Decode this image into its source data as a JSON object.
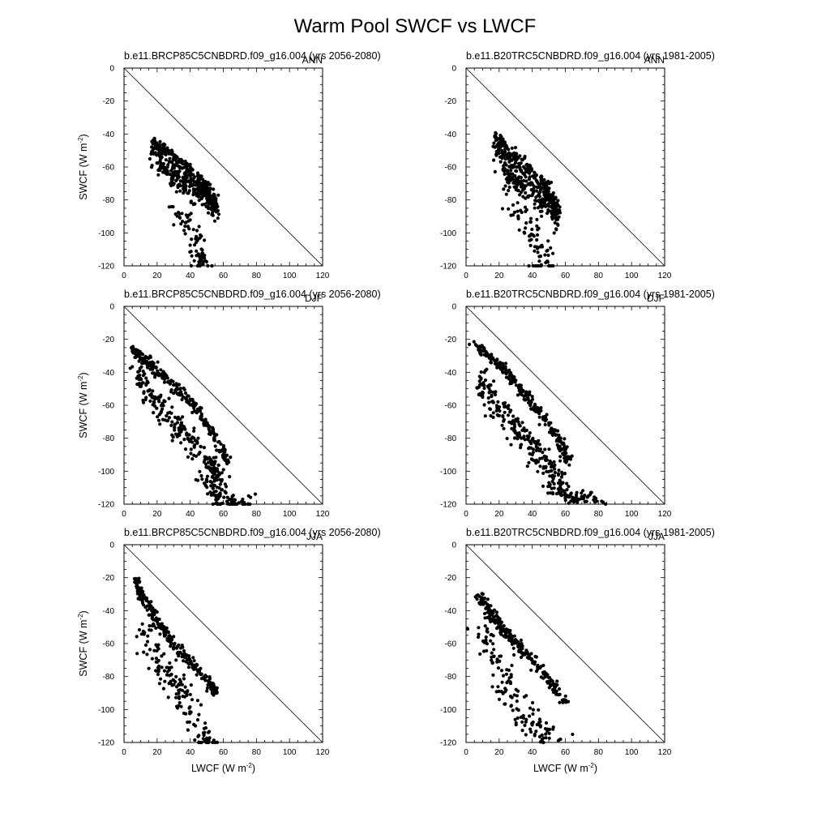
{
  "figure": {
    "title": "Warm Pool SWCF vs LWCF"
  },
  "chart_data": [
    {
      "type": "scatter",
      "title": "b.e11.BRCP85C5CNBDRD.f09_g16.004 (yrs 2056-2080)",
      "season": "ANN",
      "xlabel": "",
      "ylabel": "SWCF (W m-2)",
      "ylabel_main": "SWCF (W m",
      "ylabel_sup": "-2",
      "ylabel_end": ")",
      "xlim": [
        0,
        120
      ],
      "ylim": [
        -120,
        0
      ],
      "xticks": [
        "0",
        "20",
        "40",
        "60",
        "80",
        "100",
        "120"
      ],
      "yticks": [
        "0",
        "-20",
        "-40",
        "-60",
        "-80",
        "-100",
        "-120"
      ],
      "reference_line": "y = -x",
      "clusters": [
        {
          "curve": [
            [
              17,
              -42
            ],
            [
              25,
              -48
            ],
            [
              35,
              -56
            ],
            [
              45,
              -64
            ],
            [
              52,
              -73
            ],
            [
              56,
              -80
            ]
          ],
          "spread": [
            2,
            12
          ],
          "count": 340
        },
        {
          "curve": [
            [
              20,
              -56
            ],
            [
              30,
              -62
            ],
            [
              40,
              -68
            ],
            [
              50,
              -76
            ]
          ],
          "spread": [
            4,
            10
          ],
          "count": 120
        },
        {
          "curve": [
            [
              30,
              -80
            ],
            [
              38,
              -90
            ],
            [
              42,
              -100
            ],
            [
              45,
              -112
            ],
            [
              48,
              -118
            ]
          ],
          "spread": [
            5,
            8
          ],
          "count": 75
        }
      ]
    },
    {
      "type": "scatter",
      "title": "b.e11.B20TRC5CNBDRD.f09_g16.004 (yrs 1981-2005)",
      "season": "ANN",
      "xlabel": "",
      "ylabel": "",
      "xlim": [
        0,
        120
      ],
      "ylim": [
        -120,
        0
      ],
      "xticks": [
        "0",
        "20",
        "40",
        "60",
        "80",
        "100",
        "120"
      ],
      "yticks": [
        "0",
        "-20",
        "-40",
        "-60",
        "-80",
        "-100",
        "-120"
      ],
      "reference_line": "y = -x",
      "clusters": [
        {
          "curve": [
            [
              18,
              -40
            ],
            [
              25,
              -47
            ],
            [
              35,
              -56
            ],
            [
              45,
              -66
            ],
            [
              52,
              -76
            ],
            [
              55,
              -86
            ]
          ],
          "spread": [
            2,
            12
          ],
          "count": 340
        },
        {
          "curve": [
            [
              22,
              -58
            ],
            [
              30,
              -66
            ],
            [
              40,
              -72
            ],
            [
              50,
              -82
            ]
          ],
          "spread": [
            4,
            10
          ],
          "count": 110
        },
        {
          "curve": [
            [
              25,
              -80
            ],
            [
              35,
              -88
            ],
            [
              42,
              -100
            ],
            [
              46,
              -112
            ],
            [
              48,
              -118
            ]
          ],
          "spread": [
            6,
            8
          ],
          "count": 70
        }
      ]
    },
    {
      "type": "scatter",
      "title": "b.e11.BRCP85C5CNBDRD.f09_g16.004 (yrs 2056-2080)",
      "season": "DJF",
      "xlabel": "",
      "ylabel": "SWCF (W m-2)",
      "ylabel_main": "SWCF (W m",
      "ylabel_sup": "-2",
      "ylabel_end": ")",
      "xlim": [
        0,
        120
      ],
      "ylim": [
        -120,
        0
      ],
      "xticks": [
        "0",
        "20",
        "40",
        "60",
        "80",
        "100",
        "120"
      ],
      "yticks": [
        "0",
        "-20",
        "-40",
        "-60",
        "-80",
        "-100",
        "-120"
      ],
      "reference_line": "y = -x",
      "clusters": [
        {
          "curve": [
            [
              5,
              -25
            ],
            [
              15,
              -33
            ],
            [
              25,
              -42
            ],
            [
              35,
              -52
            ],
            [
              45,
              -63
            ],
            [
              55,
              -78
            ],
            [
              62,
              -92
            ]
          ],
          "spread": [
            2,
            3
          ],
          "count": 260
        },
        {
          "curve": [
            [
              8,
              -35
            ],
            [
              15,
              -48
            ],
            [
              25,
              -60
            ],
            [
              35,
              -72
            ],
            [
              45,
              -82
            ],
            [
              55,
              -95
            ],
            [
              60,
              -105
            ]
          ],
          "spread": [
            4,
            12
          ],
          "count": 230
        },
        {
          "curve": [
            [
              48,
              -100
            ],
            [
              55,
              -110
            ],
            [
              60,
              -115
            ],
            [
              65,
              -118
            ],
            [
              76,
              -114
            ]
          ],
          "spread": [
            6,
            8
          ],
          "count": 80
        }
      ]
    },
    {
      "type": "scatter",
      "title": "b.e11.B20TRC5CNBDRD.f09_g16.004 (yrs 1981-2005)",
      "season": "DJF",
      "xlabel": "",
      "ylabel": "",
      "xlim": [
        0,
        120
      ],
      "ylim": [
        -120,
        0
      ],
      "xticks": [
        "0",
        "20",
        "40",
        "60",
        "80",
        "100",
        "120"
      ],
      "yticks": [
        "0",
        "-20",
        "-40",
        "-60",
        "-80",
        "-100",
        "-120"
      ],
      "reference_line": "y = -x",
      "clusters": [
        {
          "curve": [
            [
              5,
              -22
            ],
            [
              15,
              -30
            ],
            [
              25,
              -40
            ],
            [
              35,
              -52
            ],
            [
              45,
              -64
            ],
            [
              55,
              -78
            ],
            [
              62,
              -92
            ]
          ],
          "spread": [
            2,
            3
          ],
          "count": 260
        },
        {
          "curve": [
            [
              8,
              -35
            ],
            [
              15,
              -50
            ],
            [
              25,
              -62
            ],
            [
              35,
              -75
            ],
            [
              45,
              -85
            ],
            [
              55,
              -98
            ],
            [
              60,
              -108
            ]
          ],
          "spread": [
            4,
            14
          ],
          "count": 230
        },
        {
          "curve": [
            [
              50,
              -105
            ],
            [
              58,
              -112
            ],
            [
              65,
              -115
            ],
            [
              72,
              -112
            ],
            [
              80,
              -118
            ]
          ],
          "spread": [
            6,
            6
          ],
          "count": 70
        }
      ]
    },
    {
      "type": "scatter",
      "title": "b.e11.BRCP85C5CNBDRD.f09_g16.004 (yrs 2056-2080)",
      "season": "JJA",
      "xlabel": "LWCF (W m-2)",
      "xlabel_main": "LWCF (W m",
      "xlabel_sup": "-2",
      "xlabel_end": ")",
      "ylabel": "SWCF (W m-2)",
      "ylabel_main": "SWCF (W m",
      "ylabel_sup": "-2",
      "ylabel_end": ")",
      "xlim": [
        0,
        120
      ],
      "ylim": [
        -120,
        0
      ],
      "xticks": [
        "0",
        "20",
        "40",
        "60",
        "80",
        "100",
        "120"
      ],
      "yticks": [
        "0",
        "-20",
        "-40",
        "-60",
        "-80",
        "-100",
        "-120"
      ],
      "reference_line": "y = -x",
      "clusters": [
        {
          "curve": [
            [
              7,
              -20
            ],
            [
              12,
              -32
            ],
            [
              20,
              -45
            ],
            [
              30,
              -58
            ],
            [
              40,
              -70
            ],
            [
              50,
              -80
            ],
            [
              55,
              -88
            ]
          ],
          "spread": [
            2,
            4
          ],
          "count": 260
        },
        {
          "curve": [
            [
              12,
              -45
            ],
            [
              20,
              -65
            ],
            [
              30,
              -80
            ],
            [
              40,
              -95
            ],
            [
              48,
              -110
            ],
            [
              52,
              -118
            ]
          ],
          "spread": [
            7,
            12
          ],
          "count": 150
        }
      ]
    },
    {
      "type": "scatter",
      "title": "b.e11.B20TRC5CNBDRD.f09_g16.004 (yrs 1981-2005)",
      "season": "JJA",
      "xlabel": "LWCF (W m-2)",
      "xlabel_main": "LWCF (W m",
      "xlabel_sup": "-2",
      "xlabel_end": ")",
      "ylabel": "",
      "xlim": [
        0,
        120
      ],
      "ylim": [
        -120,
        0
      ],
      "xticks": [
        "0",
        "20",
        "40",
        "60",
        "80",
        "100",
        "120"
      ],
      "yticks": [
        "0",
        "-20",
        "-40",
        "-60",
        "-80",
        "-100",
        "-120"
      ],
      "reference_line": "y = -x",
      "clusters": [
        {
          "curve": [
            [
              8,
              -30
            ],
            [
              15,
              -40
            ],
            [
              22,
              -50
            ],
            [
              30,
              -58
            ],
            [
              40,
              -68
            ],
            [
              50,
              -80
            ],
            [
              60,
              -94
            ]
          ],
          "spread": [
            2,
            4
          ],
          "count": 240
        },
        {
          "curve": [
            [
              10,
              -40
            ],
            [
              18,
              -65
            ],
            [
              25,
              -85
            ],
            [
              35,
              -100
            ],
            [
              45,
              -108
            ],
            [
              52,
              -112
            ]
          ],
          "spread": [
            7,
            12
          ],
          "count": 140
        }
      ]
    }
  ]
}
